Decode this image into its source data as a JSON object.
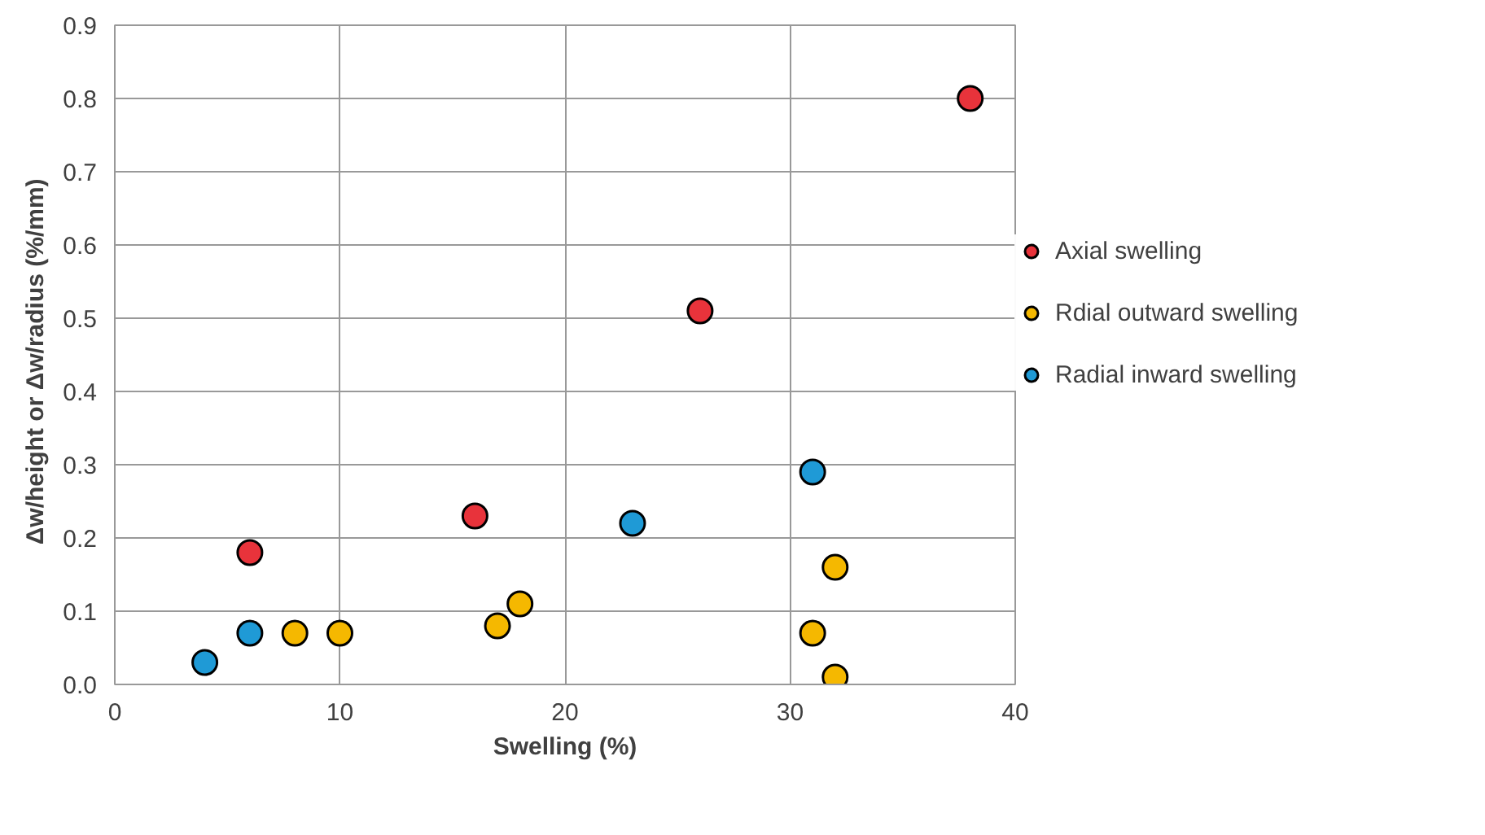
{
  "chart_data": {
    "type": "scatter",
    "xlabel": "Swelling (%)",
    "ylabel": "Δw/height or Δw/radius   (%/mm)",
    "xlim": [
      0,
      40
    ],
    "xticks": [
      0,
      10,
      20,
      30,
      40
    ],
    "ylim": [
      0,
      0.9
    ],
    "yticks": [
      {
        "value": 0,
        "label": "0.0"
      },
      0.1,
      0.2,
      0.3,
      0.4,
      0.5,
      0.6,
      0.7,
      0.8,
      0.9
    ],
    "grid": true,
    "legend": "right",
    "marker": "circle",
    "series": [
      {
        "name": "Axial swelling",
        "color": "#e8333b",
        "x": [
          6,
          16,
          26,
          38
        ],
        "values": [
          0.18,
          0.23,
          0.51,
          0.8
        ]
      },
      {
        "name": "Rdial outward swelling",
        "color": "#f5b800",
        "x": [
          8,
          10,
          17,
          18,
          31,
          32,
          32
        ],
        "values": [
          0.07,
          0.07,
          0.08,
          0.11,
          0.07,
          0.16,
          0.01
        ]
      },
      {
        "name": "Radial inward swelling",
        "color": "#1f9ad6",
        "x": [
          4,
          6,
          23,
          31
        ],
        "values": [
          0.03,
          0.07,
          0.22,
          0.29
        ]
      }
    ]
  }
}
